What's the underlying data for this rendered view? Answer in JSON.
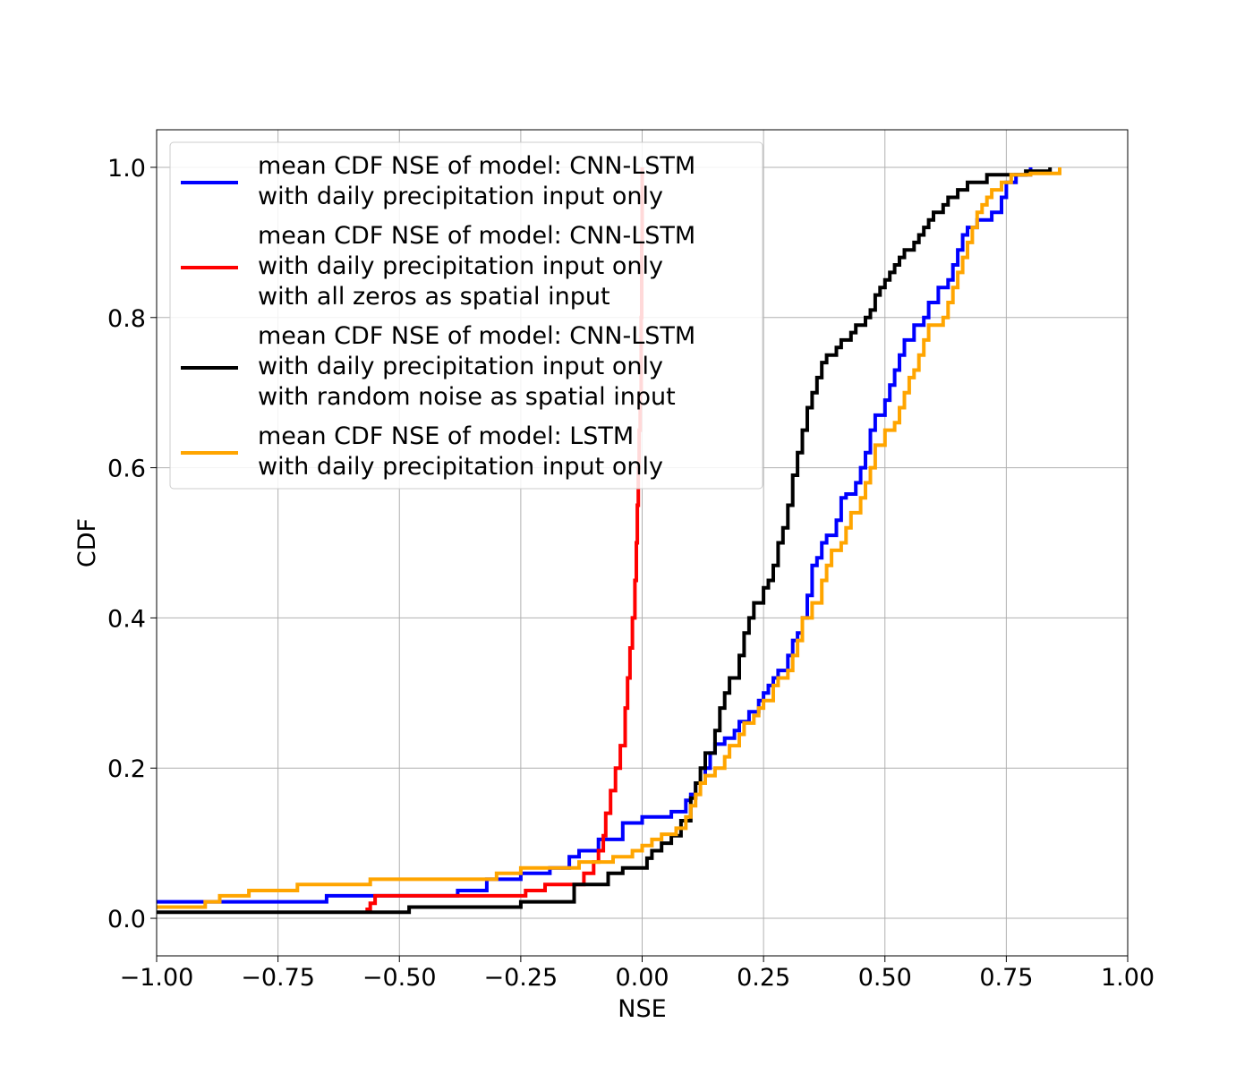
{
  "chart_data": {
    "type": "line",
    "title": "",
    "xlabel": "NSE",
    "ylabel": "CDF",
    "xlim": [
      -1.0,
      1.0
    ],
    "ylim": [
      -0.05,
      1.05
    ],
    "x_ticks": [
      "−1.00",
      "−0.75",
      "−0.50",
      "−0.25",
      "0.00",
      "0.25",
      "0.50",
      "0.75",
      "1.00"
    ],
    "y_ticks": [
      "0.0",
      "0.2",
      "0.4",
      "0.6",
      "0.8",
      "1.0"
    ],
    "grid": true,
    "legend_placement": "upper-left",
    "step": true,
    "series": [
      {
        "name": "mean CDF NSE of model: CNN-LSTM\nwith daily precipitation input only",
        "color": "#0000ff",
        "points": [
          [
            -1.0,
            0.022
          ],
          [
            -0.65,
            0.022
          ],
          [
            -0.65,
            0.03
          ],
          [
            -0.38,
            0.03
          ],
          [
            -0.38,
            0.037
          ],
          [
            -0.32,
            0.037
          ],
          [
            -0.32,
            0.052
          ],
          [
            -0.25,
            0.052
          ],
          [
            -0.25,
            0.06
          ],
          [
            -0.19,
            0.06
          ],
          [
            -0.19,
            0.067
          ],
          [
            -0.15,
            0.067
          ],
          [
            -0.15,
            0.082
          ],
          [
            -0.13,
            0.082
          ],
          [
            -0.13,
            0.09
          ],
          [
            -0.09,
            0.09
          ],
          [
            -0.09,
            0.105
          ],
          [
            -0.04,
            0.105
          ],
          [
            -0.04,
            0.127
          ],
          [
            0.0,
            0.127
          ],
          [
            0.0,
            0.135
          ],
          [
            0.05,
            0.135
          ],
          [
            0.06,
            0.142
          ],
          [
            0.08,
            0.142
          ],
          [
            0.09,
            0.157
          ],
          [
            0.1,
            0.165
          ],
          [
            0.11,
            0.18
          ],
          [
            0.13,
            0.2
          ],
          [
            0.14,
            0.22
          ],
          [
            0.15,
            0.232
          ],
          [
            0.17,
            0.24
          ],
          [
            0.19,
            0.25
          ],
          [
            0.2,
            0.262
          ],
          [
            0.22,
            0.275
          ],
          [
            0.24,
            0.29
          ],
          [
            0.25,
            0.3
          ],
          [
            0.26,
            0.31
          ],
          [
            0.27,
            0.32
          ],
          [
            0.28,
            0.33
          ],
          [
            0.3,
            0.35
          ],
          [
            0.31,
            0.37
          ],
          [
            0.32,
            0.38
          ],
          [
            0.33,
            0.4
          ],
          [
            0.34,
            0.43
          ],
          [
            0.35,
            0.47
          ],
          [
            0.36,
            0.48
          ],
          [
            0.37,
            0.5
          ],
          [
            0.38,
            0.51
          ],
          [
            0.4,
            0.53
          ],
          [
            0.41,
            0.56
          ],
          [
            0.42,
            0.565
          ],
          [
            0.44,
            0.58
          ],
          [
            0.45,
            0.6
          ],
          [
            0.46,
            0.62
          ],
          [
            0.47,
            0.65
          ],
          [
            0.48,
            0.67
          ],
          [
            0.5,
            0.69
          ],
          [
            0.51,
            0.71
          ],
          [
            0.52,
            0.73
          ],
          [
            0.53,
            0.75
          ],
          [
            0.54,
            0.77
          ],
          [
            0.56,
            0.79
          ],
          [
            0.58,
            0.8
          ],
          [
            0.59,
            0.82
          ],
          [
            0.61,
            0.84
          ],
          [
            0.63,
            0.85
          ],
          [
            0.64,
            0.87
          ],
          [
            0.65,
            0.89
          ],
          [
            0.66,
            0.91
          ],
          [
            0.67,
            0.92
          ],
          [
            0.69,
            0.93
          ],
          [
            0.72,
            0.94
          ],
          [
            0.74,
            0.96
          ],
          [
            0.75,
            0.98
          ],
          [
            0.77,
            0.99
          ],
          [
            0.8,
            1.0
          ]
        ]
      },
      {
        "name": "mean CDF NSE of model: CNN-LSTM\nwith daily precipitation input only\nwith all zeros as spatial input",
        "color": "#ff0000",
        "points": [
          [
            -0.57,
            0.012
          ],
          [
            -0.56,
            0.02
          ],
          [
            -0.55,
            0.03
          ],
          [
            -0.25,
            0.03
          ],
          [
            -0.24,
            0.037
          ],
          [
            -0.2,
            0.037
          ],
          [
            -0.2,
            0.045
          ],
          [
            -0.15,
            0.045
          ],
          [
            -0.12,
            0.06
          ],
          [
            -0.1,
            0.075
          ],
          [
            -0.09,
            0.09
          ],
          [
            -0.08,
            0.11
          ],
          [
            -0.075,
            0.14
          ],
          [
            -0.065,
            0.17
          ],
          [
            -0.055,
            0.2
          ],
          [
            -0.045,
            0.23
          ],
          [
            -0.035,
            0.28
          ],
          [
            -0.03,
            0.32
          ],
          [
            -0.025,
            0.36
          ],
          [
            -0.02,
            0.4
          ],
          [
            -0.015,
            0.45
          ],
          [
            -0.012,
            0.5
          ],
          [
            -0.01,
            0.55
          ],
          [
            -0.008,
            0.6
          ],
          [
            -0.006,
            0.65
          ],
          [
            -0.004,
            0.7
          ],
          [
            -0.002,
            0.8
          ],
          [
            -0.001,
            0.9
          ],
          [
            0.0,
            1.0
          ]
        ]
      },
      {
        "name": "mean CDF NSE of model: CNN-LSTM\nwith daily precipitation input only\nwith random noise as spatial input",
        "color": "#000000",
        "points": [
          [
            -1.0,
            0.008
          ],
          [
            -0.48,
            0.008
          ],
          [
            -0.48,
            0.015
          ],
          [
            -0.25,
            0.015
          ],
          [
            -0.25,
            0.022
          ],
          [
            -0.14,
            0.022
          ],
          [
            -0.14,
            0.045
          ],
          [
            -0.08,
            0.045
          ],
          [
            -0.07,
            0.06
          ],
          [
            -0.05,
            0.06
          ],
          [
            -0.04,
            0.067
          ],
          [
            0.0,
            0.067
          ],
          [
            0.01,
            0.08
          ],
          [
            0.02,
            0.09
          ],
          [
            0.04,
            0.1
          ],
          [
            0.06,
            0.11
          ],
          [
            0.08,
            0.13
          ],
          [
            0.1,
            0.16
          ],
          [
            0.11,
            0.18
          ],
          [
            0.12,
            0.2
          ],
          [
            0.13,
            0.22
          ],
          [
            0.15,
            0.25
          ],
          [
            0.16,
            0.28
          ],
          [
            0.17,
            0.3
          ],
          [
            0.18,
            0.32
          ],
          [
            0.2,
            0.35
          ],
          [
            0.21,
            0.38
          ],
          [
            0.22,
            0.4
          ],
          [
            0.23,
            0.42
          ],
          [
            0.25,
            0.44
          ],
          [
            0.26,
            0.45
          ],
          [
            0.27,
            0.47
          ],
          [
            0.28,
            0.5
          ],
          [
            0.29,
            0.52
          ],
          [
            0.3,
            0.55
          ],
          [
            0.31,
            0.59
          ],
          [
            0.32,
            0.62
          ],
          [
            0.33,
            0.65
          ],
          [
            0.34,
            0.68
          ],
          [
            0.35,
            0.7
          ],
          [
            0.36,
            0.72
          ],
          [
            0.37,
            0.74
          ],
          [
            0.38,
            0.75
          ],
          [
            0.4,
            0.76
          ],
          [
            0.41,
            0.77
          ],
          [
            0.43,
            0.78
          ],
          [
            0.44,
            0.79
          ],
          [
            0.46,
            0.8
          ],
          [
            0.47,
            0.81
          ],
          [
            0.48,
            0.83
          ],
          [
            0.49,
            0.84
          ],
          [
            0.5,
            0.85
          ],
          [
            0.51,
            0.86
          ],
          [
            0.52,
            0.87
          ],
          [
            0.53,
            0.88
          ],
          [
            0.54,
            0.89
          ],
          [
            0.56,
            0.9
          ],
          [
            0.57,
            0.91
          ],
          [
            0.58,
            0.92
          ],
          [
            0.59,
            0.93
          ],
          [
            0.6,
            0.94
          ],
          [
            0.62,
            0.95
          ],
          [
            0.63,
            0.96
          ],
          [
            0.65,
            0.97
          ],
          [
            0.67,
            0.98
          ],
          [
            0.71,
            0.99
          ],
          [
            0.79,
            0.995
          ],
          [
            0.84,
            1.0
          ]
        ]
      },
      {
        "name": "mean CDF NSE of model: LSTM\nwith daily precipitation input only",
        "color": "#ffa500",
        "points": [
          [
            -1.0,
            0.015
          ],
          [
            -0.9,
            0.015
          ],
          [
            -0.9,
            0.022
          ],
          [
            -0.87,
            0.022
          ],
          [
            -0.87,
            0.03
          ],
          [
            -0.81,
            0.03
          ],
          [
            -0.81,
            0.037
          ],
          [
            -0.71,
            0.037
          ],
          [
            -0.71,
            0.045
          ],
          [
            -0.56,
            0.045
          ],
          [
            -0.56,
            0.052
          ],
          [
            -0.3,
            0.052
          ],
          [
            -0.3,
            0.06
          ],
          [
            -0.25,
            0.06
          ],
          [
            -0.25,
            0.067
          ],
          [
            -0.13,
            0.067
          ],
          [
            -0.13,
            0.075
          ],
          [
            -0.06,
            0.075
          ],
          [
            -0.06,
            0.082
          ],
          [
            -0.03,
            0.082
          ],
          [
            -0.02,
            0.09
          ],
          [
            0.0,
            0.097
          ],
          [
            0.02,
            0.105
          ],
          [
            0.04,
            0.112
          ],
          [
            0.07,
            0.12
          ],
          [
            0.09,
            0.135
          ],
          [
            0.1,
            0.15
          ],
          [
            0.11,
            0.165
          ],
          [
            0.12,
            0.18
          ],
          [
            0.13,
            0.19
          ],
          [
            0.15,
            0.2
          ],
          [
            0.17,
            0.215
          ],
          [
            0.18,
            0.23
          ],
          [
            0.2,
            0.245
          ],
          [
            0.21,
            0.26
          ],
          [
            0.23,
            0.27
          ],
          [
            0.24,
            0.28
          ],
          [
            0.25,
            0.29
          ],
          [
            0.27,
            0.31
          ],
          [
            0.28,
            0.32
          ],
          [
            0.3,
            0.33
          ],
          [
            0.31,
            0.35
          ],
          [
            0.32,
            0.37
          ],
          [
            0.33,
            0.4
          ],
          [
            0.35,
            0.42
          ],
          [
            0.37,
            0.45
          ],
          [
            0.38,
            0.47
          ],
          [
            0.39,
            0.49
          ],
          [
            0.41,
            0.5
          ],
          [
            0.42,
            0.52
          ],
          [
            0.43,
            0.54
          ],
          [
            0.45,
            0.56
          ],
          [
            0.46,
            0.58
          ],
          [
            0.47,
            0.6
          ],
          [
            0.48,
            0.63
          ],
          [
            0.5,
            0.65
          ],
          [
            0.52,
            0.66
          ],
          [
            0.53,
            0.68
          ],
          [
            0.54,
            0.7
          ],
          [
            0.55,
            0.72
          ],
          [
            0.56,
            0.73
          ],
          [
            0.57,
            0.75
          ],
          [
            0.58,
            0.77
          ],
          [
            0.59,
            0.79
          ],
          [
            0.62,
            0.8
          ],
          [
            0.63,
            0.82
          ],
          [
            0.64,
            0.84
          ],
          [
            0.65,
            0.86
          ],
          [
            0.66,
            0.88
          ],
          [
            0.67,
            0.9
          ],
          [
            0.68,
            0.92
          ],
          [
            0.69,
            0.94
          ],
          [
            0.7,
            0.95
          ],
          [
            0.71,
            0.96
          ],
          [
            0.72,
            0.97
          ],
          [
            0.74,
            0.98
          ],
          [
            0.76,
            0.99
          ],
          [
            0.8,
            0.992
          ],
          [
            0.86,
            1.0
          ]
        ]
      }
    ]
  }
}
